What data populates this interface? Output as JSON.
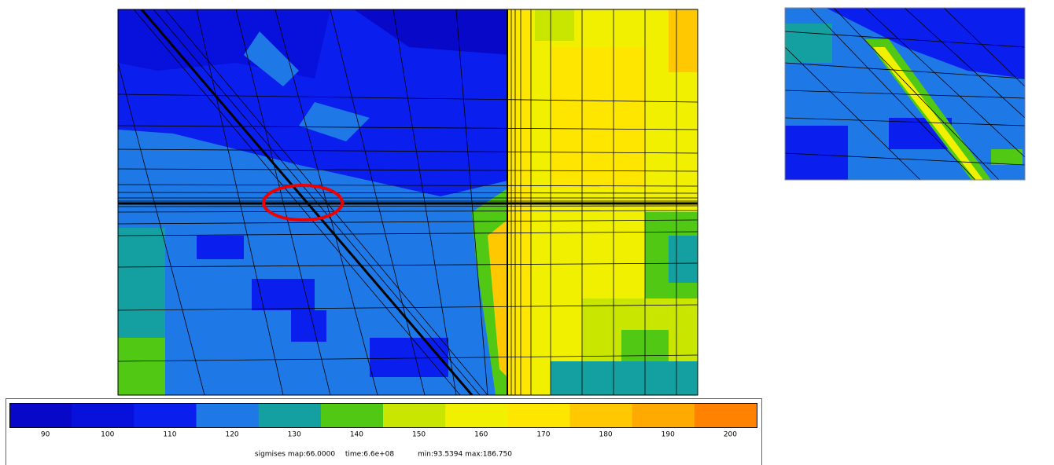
{
  "colorbar": {
    "colors": [
      "#0808c8",
      "#0810dc",
      "#0a1eee",
      "#1e78e6",
      "#14a0a0",
      "#50c814",
      "#c8e600",
      "#f0f000",
      "#ffe600",
      "#ffc800",
      "#ffaa00",
      "#ff8200"
    ],
    "ticks": [
      "90",
      "100",
      "110",
      "120",
      "130",
      "140",
      "150",
      "160",
      "170",
      "180",
      "190",
      "200"
    ]
  },
  "footer": {
    "map": "sigmises map:66.0000",
    "time": "time:6.6e+08",
    "range": "min:93.5394 max:186.750"
  }
}
